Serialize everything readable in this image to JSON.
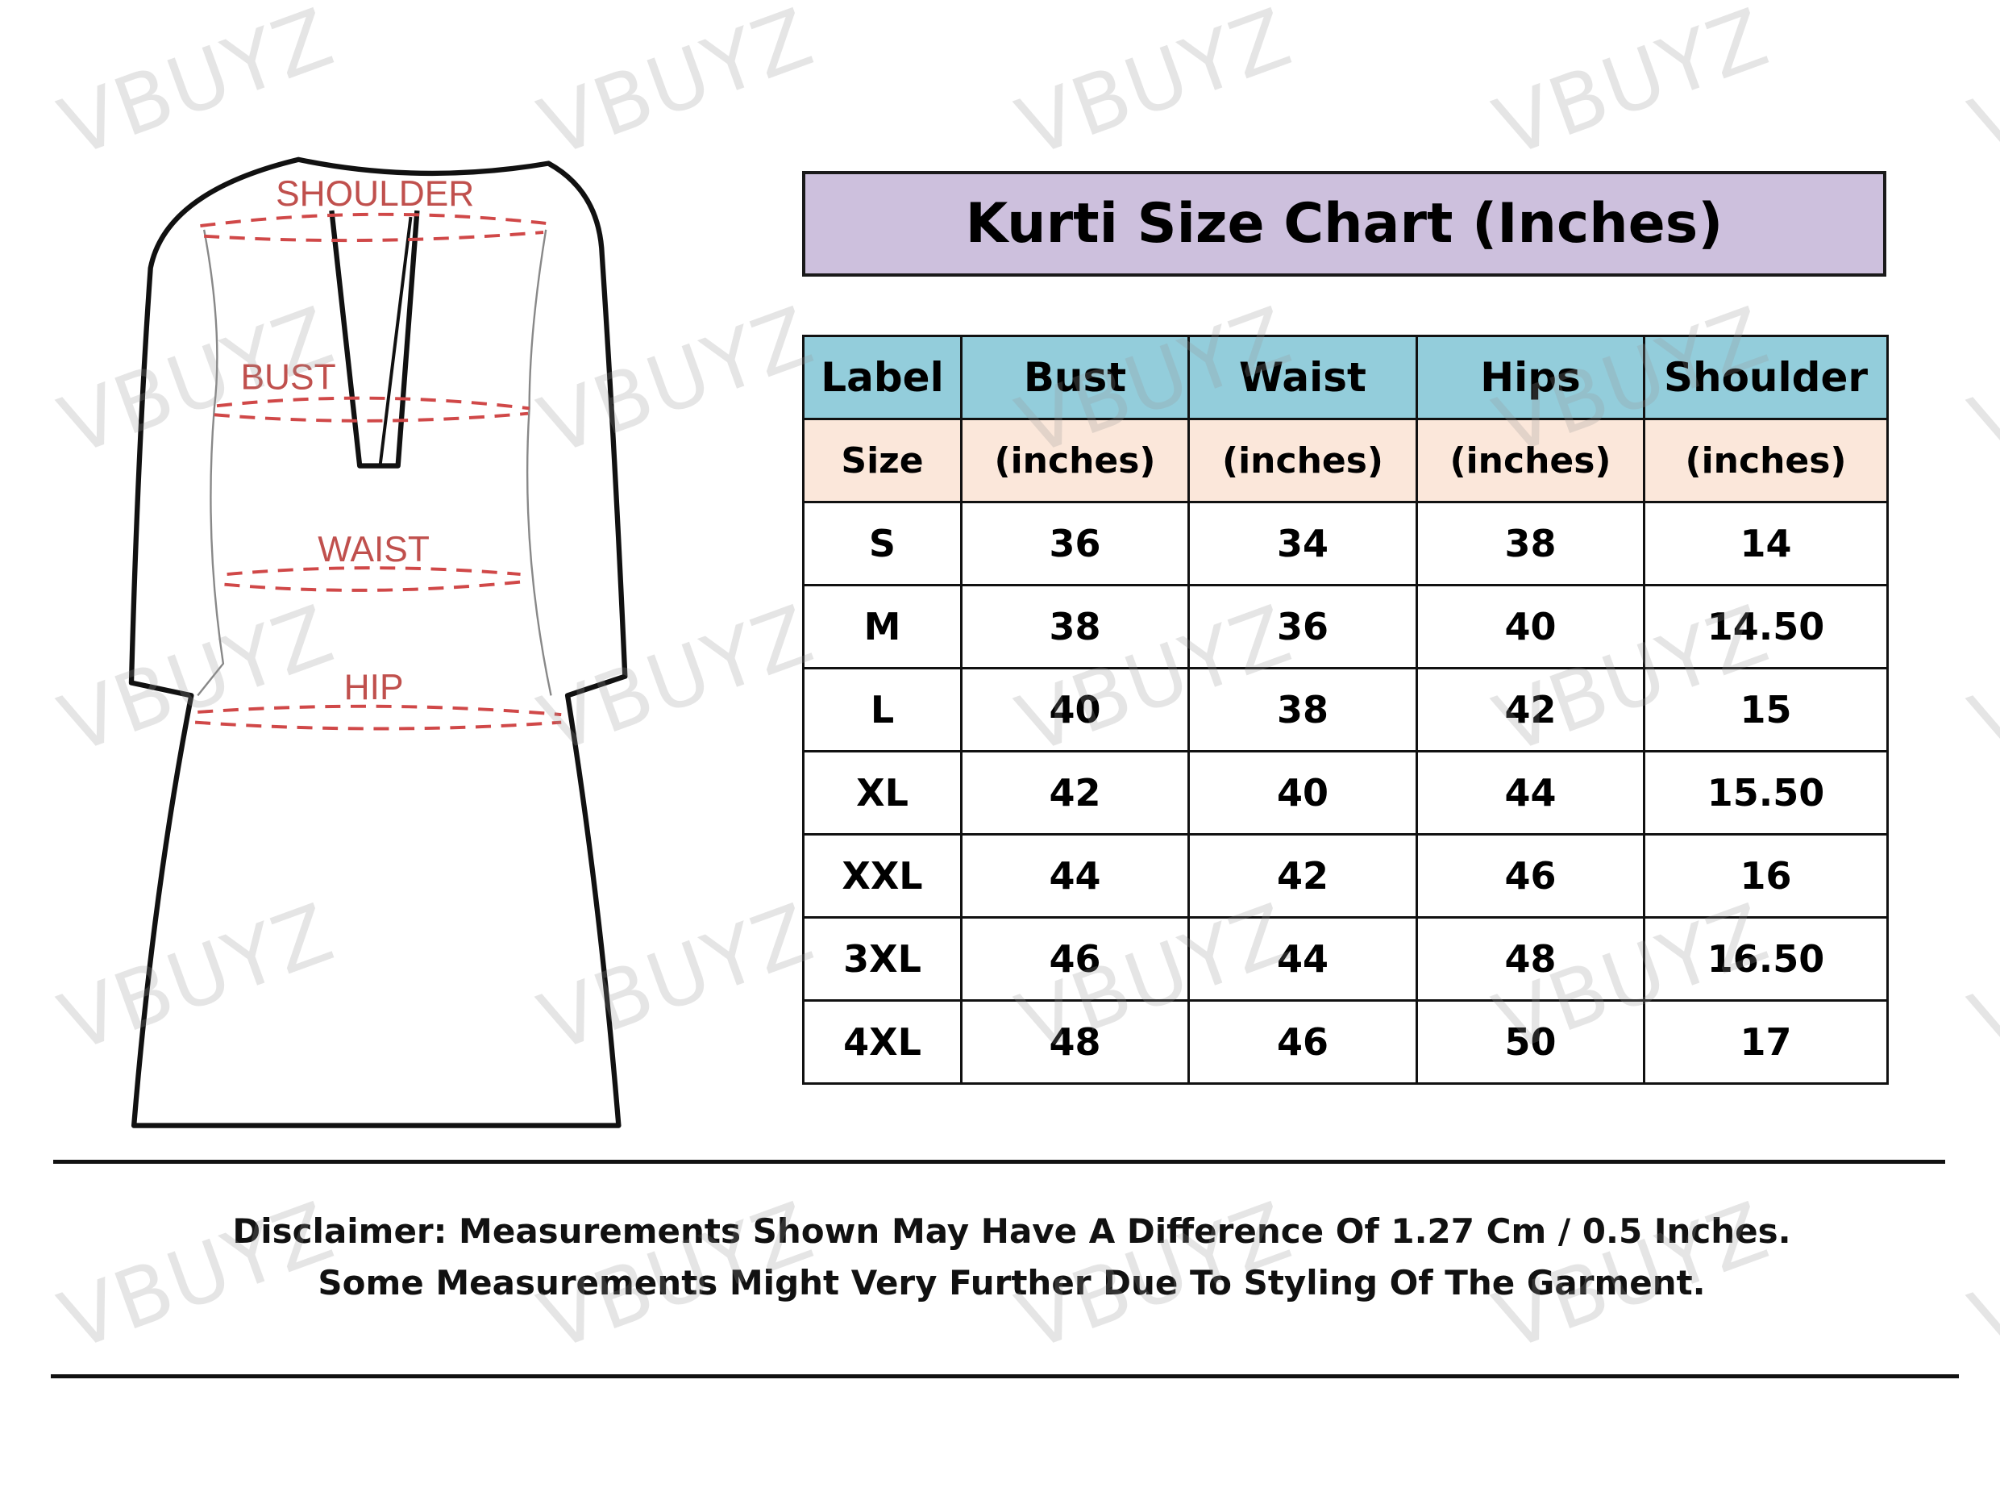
{
  "watermark": "VBUYZ",
  "diagram": {
    "labels": {
      "shoulder": "SHOULDER",
      "bust": "BUST",
      "waist": "WAIST",
      "hip": "HIP"
    },
    "label_color": "#c0504d"
  },
  "title": "Kurti Size Chart (Inches)",
  "table": {
    "headers": [
      "Label",
      "Bust",
      "Waist",
      "Hips",
      "Shoulder"
    ],
    "units": [
      "Size",
      "(inches)",
      "(inches)",
      "(inches)",
      "(inches)"
    ],
    "rows": [
      [
        "S",
        "36",
        "34",
        "38",
        "14"
      ],
      [
        "M",
        "38",
        "36",
        "40",
        "14.50"
      ],
      [
        "L",
        "40",
        "38",
        "42",
        "15"
      ],
      [
        "XL",
        "42",
        "40",
        "44",
        "15.50"
      ],
      [
        "XXL",
        "44",
        "42",
        "46",
        "16"
      ],
      [
        "3XL",
        "46",
        "44",
        "48",
        "16.50"
      ],
      [
        "4XL",
        "48",
        "46",
        "50",
        "17"
      ]
    ]
  },
  "disclaimer": {
    "line1": "Disclaimer: Measurements Shown May Have A Difference Of 1.27 Cm / 0.5 Inches.",
    "line2": "Some Measurements Might Very Further Due To Styling Of The Garment."
  },
  "colors": {
    "title_bg": "#cdc0dd",
    "header_bg": "#93cddb",
    "units_bg": "#fbe7da"
  }
}
